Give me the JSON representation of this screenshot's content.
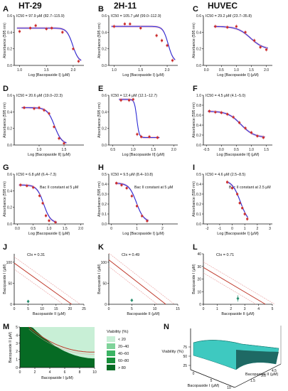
{
  "columns": [
    "HT-29",
    "2H-11",
    "HUVEC"
  ],
  "colors": {
    "curve": "#2b2bd6",
    "point": "#cc2f2f",
    "error": "#d98c8c",
    "band": "#f4b8c9",
    "isobole": "#c0392b",
    "isobole_ci": "#e89b9b",
    "combo_point": "#2a8f6f",
    "axis": "#111111",
    "green_scale": [
      "#c8efd6",
      "#7fd39a",
      "#3cb464",
      "#178f3a",
      "#066b24"
    ],
    "surface": "#3ec9c0"
  },
  "panel_letters": [
    "A",
    "B",
    "C",
    "D",
    "E",
    "F",
    "G",
    "H",
    "I",
    "J",
    "K",
    "L",
    "M",
    "N"
  ],
  "chart_data": [
    {
      "panel": "A",
      "type": "line",
      "column": "HT-29",
      "title": "IC50 = 97.9 μM (82.7–115.9)",
      "xlabel": "Log [Bacopaside I] (μM)",
      "ylabel": "Absorbance (595 nm)",
      "xlim": [
        0.9,
        2.2
      ],
      "ylim": [
        0,
        0.6
      ],
      "xticks": [
        "1.0",
        "1.5",
        "2.0"
      ],
      "yticks": [
        "0.0",
        "0.2",
        "0.4",
        "0.6"
      ],
      "top": 0.45,
      "bottom": 0.04,
      "logIC50": 1.99,
      "hill": -8,
      "points": [
        {
          "x": 1.0,
          "y": 0.41
        },
        {
          "x": 1.2,
          "y": 0.45
        },
        {
          "x": 1.3,
          "y": 0.48
        },
        {
          "x": 1.5,
          "y": 0.44
        },
        {
          "x": 1.6,
          "y": 0.45
        },
        {
          "x": 1.8,
          "y": 0.4
        },
        {
          "x": 2.0,
          "y": 0.2
        },
        {
          "x": 2.1,
          "y": 0.05
        }
      ]
    },
    {
      "panel": "B",
      "type": "line",
      "column": "2H-11",
      "title": "IC50 = 105.7 μM (99.0–112.9)",
      "xlabel": "Log [Bacopaside I] (μM)",
      "ylabel": "Absorbance (595 nm)",
      "xlim": [
        0.9,
        2.2
      ],
      "ylim": [
        0,
        0.6
      ],
      "xticks": [
        "1.0",
        "1.5",
        "2.0"
      ],
      "yticks": [
        "0.0",
        "0.2",
        "0.4",
        "0.6"
      ],
      "top": 0.47,
      "bottom": 0.04,
      "logIC50": 2.02,
      "hill": -9,
      "points": [
        {
          "x": 1.0,
          "y": 0.47
        },
        {
          "x": 1.2,
          "y": 0.5
        },
        {
          "x": 1.3,
          "y": 0.5
        },
        {
          "x": 1.5,
          "y": 0.45
        },
        {
          "x": 1.8,
          "y": 0.36
        },
        {
          "x": 1.9,
          "y": 0.3
        },
        {
          "x": 2.0,
          "y": 0.24
        },
        {
          "x": 2.1,
          "y": 0.06
        }
      ]
    },
    {
      "panel": "C",
      "type": "line",
      "column": "HUVEC",
      "title": "IC50 = 29.2 μM (23.7–35.8)",
      "xlabel": "Log [Bacopaside I] (μM)",
      "ylabel": "Absorbance (595 nm)",
      "xlim": [
        -0.1,
        2.2
      ],
      "ylim": [
        0,
        0.6
      ],
      "xticks": [
        "0.0",
        "0.5",
        "1.0",
        "1.5",
        "2.0"
      ],
      "yticks": [
        "0.0",
        "0.2",
        "0.4",
        "0.6"
      ],
      "top": 0.47,
      "bottom": 0.19,
      "logIC50": 1.47,
      "hill": -2,
      "points": [
        {
          "x": 0.3,
          "y": 0.47
        },
        {
          "x": 0.7,
          "y": 0.46
        },
        {
          "x": 1.0,
          "y": 0.47
        },
        {
          "x": 1.3,
          "y": 0.4
        },
        {
          "x": 1.6,
          "y": 0.3
        },
        {
          "x": 1.8,
          "y": 0.22
        },
        {
          "x": 2.0,
          "y": 0.19
        }
      ]
    },
    {
      "panel": "D",
      "type": "line",
      "column": "HT-29",
      "title": "IC50 = 20.6 μM (19.0–22.3)",
      "xlabel": "Log [Bacopaside II] (μM)",
      "ylabel": "Absorbance (595 nm)",
      "xlim": [
        0.5,
        1.9
      ],
      "ylim": [
        0,
        0.6
      ],
      "xticks": [
        "1.0",
        "1.5"
      ],
      "yticks": [
        "0.0",
        "0.2",
        "0.4",
        "0.6"
      ],
      "top": 0.45,
      "bottom": 0.01,
      "logIC50": 1.31,
      "hill": -6,
      "points": [
        {
          "x": 0.7,
          "y": 0.45
        },
        {
          "x": 0.9,
          "y": 0.44
        },
        {
          "x": 1.0,
          "y": 0.45
        },
        {
          "x": 1.1,
          "y": 0.42
        },
        {
          "x": 1.2,
          "y": 0.38
        },
        {
          "x": 1.3,
          "y": 0.22
        },
        {
          "x": 1.4,
          "y": 0.08
        },
        {
          "x": 1.5,
          "y": 0.02
        }
      ]
    },
    {
      "panel": "E",
      "type": "line",
      "column": "2H-11",
      "title": "IC50 = 12.4 μM (12.1–12.7)",
      "xlabel": "Log [Bacopaside II] (μM)",
      "ylabel": "Absorbance (595 nm)",
      "xlim": [
        0.4,
        2.1
      ],
      "ylim": [
        0,
        0.6
      ],
      "xticks": [
        "0.5",
        "1.0",
        "1.5",
        "2.0"
      ],
      "yticks": [
        "0.0",
        "0.2",
        "0.4",
        "0.6"
      ],
      "top": 0.55,
      "bottom": 0.09,
      "logIC50": 1.09,
      "hill": -15,
      "points": [
        {
          "x": 0.7,
          "y": 0.54
        },
        {
          "x": 0.9,
          "y": 0.54
        },
        {
          "x": 1.0,
          "y": 0.55
        },
        {
          "x": 1.1,
          "y": 0.13
        },
        {
          "x": 1.2,
          "y": 0.1
        },
        {
          "x": 1.4,
          "y": 0.1
        },
        {
          "x": 1.6,
          "y": 0.09
        }
      ]
    },
    {
      "panel": "F",
      "type": "line",
      "column": "HUVEC",
      "title": "IC50 = 4.5 μM (4.1–5.0)",
      "xlabel": "Log [Bacopaside II] (μM)",
      "ylabel": "Absorbance (595 nm)",
      "xlim": [
        -0.6,
        1.7
      ],
      "ylim": [
        0,
        1.0
      ],
      "xticks": [
        "-0.5",
        "0.0",
        "0.5",
        "1.0",
        "1.5"
      ],
      "yticks": [
        "0.0",
        "0.2",
        "0.4",
        "0.6",
        "0.8",
        "1.0"
      ],
      "top": 0.68,
      "bottom": 0.15,
      "logIC50": 0.65,
      "hill": -2,
      "points": [
        {
          "x": -0.4,
          "y": 0.68
        },
        {
          "x": -0.2,
          "y": 0.66
        },
        {
          "x": 0.0,
          "y": 0.65
        },
        {
          "x": 0.2,
          "y": 0.62
        },
        {
          "x": 0.4,
          "y": 0.56
        },
        {
          "x": 0.6,
          "y": 0.45
        },
        {
          "x": 0.8,
          "y": 0.34
        },
        {
          "x": 1.0,
          "y": 0.25
        },
        {
          "x": 1.2,
          "y": 0.18
        },
        {
          "x": 1.4,
          "y": 0.15
        }
      ]
    },
    {
      "panel": "G",
      "type": "line",
      "column": "HT-29",
      "title": "IC50 = 6.8 μM (6.4–7.3)",
      "annotation": "Bac II constant at 5 μM",
      "xlabel": "Log [Bacopaside I] (μM)",
      "ylabel": "Absorbance (595 nm)",
      "xlim": [
        -0.1,
        2.1
      ],
      "ylim": [
        0,
        0.6
      ],
      "xticks": [
        "0.0",
        "0.5",
        "1.0",
        "1.5",
        "2.0"
      ],
      "yticks": [
        "0.0",
        "0.2",
        "0.4",
        "0.6"
      ],
      "top": 0.47,
      "bottom": 0.01,
      "logIC50": 0.83,
      "hill": -4,
      "points": [
        {
          "x": 0.1,
          "y": 0.47
        },
        {
          "x": 0.3,
          "y": 0.46
        },
        {
          "x": 0.5,
          "y": 0.44
        },
        {
          "x": 0.7,
          "y": 0.34
        },
        {
          "x": 0.8,
          "y": 0.25
        },
        {
          "x": 0.9,
          "y": 0.1
        },
        {
          "x": 1.0,
          "y": 0.04
        },
        {
          "x": 1.2,
          "y": 0.02
        }
      ]
    },
    {
      "panel": "H",
      "type": "line",
      "column": "2H-11",
      "title": "IC50 = 9.5 μM (8.4–10.8)",
      "annotation": "Bac II constant at 5 μM",
      "xlabel": "Log [Bacopaside I] (μM)",
      "ylabel": "Absorbance (595 nm)",
      "xlim": [
        -0.1,
        2.6
      ],
      "ylim": [
        0,
        0.5
      ],
      "xticks": [
        "0",
        "1",
        "2"
      ],
      "yticks": [
        "0.0",
        "0.1",
        "0.2",
        "0.3",
        "0.4",
        "0.5"
      ],
      "top": 0.41,
      "bottom": 0.02,
      "logIC50": 0.98,
      "hill": -3,
      "points": [
        {
          "x": 0.2,
          "y": 0.41
        },
        {
          "x": 0.4,
          "y": 0.39
        },
        {
          "x": 0.6,
          "y": 0.36
        },
        {
          "x": 0.8,
          "y": 0.28
        },
        {
          "x": 1.0,
          "y": 0.18
        },
        {
          "x": 1.2,
          "y": 0.08
        },
        {
          "x": 1.4,
          "y": 0.03
        }
      ]
    },
    {
      "panel": "I",
      "type": "line",
      "column": "HUVEC",
      "title": "IC50 = 4.6 μM (2.5–8.5)",
      "annotation": "Bac II constant at 2.5 μM",
      "xlabel": "Log [Bacopaside I] (μM)",
      "ylabel": "Absorbance (595 nm)",
      "xlim": [
        -2.3,
        3.2
      ],
      "ylim": [
        0,
        0.5
      ],
      "xticks": [
        "-2",
        "-1",
        "0",
        "1",
        "2",
        "3"
      ],
      "yticks": [
        "0.0",
        "0.1",
        "0.2",
        "0.3",
        "0.4",
        "0.5"
      ],
      "top": 0.44,
      "bottom": 0.0,
      "logIC50": 0.66,
      "hill": -1.3,
      "points": [
        {
          "x": -0.4,
          "y": 0.42
        },
        {
          "x": 0.0,
          "y": 0.36
        },
        {
          "x": 0.4,
          "y": 0.3
        },
        {
          "x": 0.6,
          "y": 0.21
        },
        {
          "x": 0.8,
          "y": 0.16
        },
        {
          "x": 1.0,
          "y": 0.1
        },
        {
          "x": 1.2,
          "y": 0.05
        }
      ]
    },
    {
      "panel": "J",
      "type": "line",
      "column": "HT-29",
      "title": "CIx = 0.31",
      "xlabel": "Bacopaside II (μM)",
      "ylabel": "Bacopaside I (μM)",
      "xlim": [
        0,
        25
      ],
      "ylim": [
        0,
        120
      ],
      "xticks": [
        "0",
        "5",
        "10",
        "15",
        "20",
        "25"
      ],
      "yticks": [
        "0",
        "50",
        "100"
      ],
      "isobole": {
        "x_int": 20.6,
        "y_int": 97.9
      },
      "combo_point": {
        "x": 5,
        "y": 6.8,
        "err": 2
      }
    },
    {
      "panel": "K",
      "type": "line",
      "column": "2H-11",
      "title": "CIx = 0.49",
      "xlabel": "Bacopaside II (μM)",
      "ylabel": "Bacopaside I (μM)",
      "xlim": [
        0,
        15
      ],
      "ylim": [
        0,
        120
      ],
      "xticks": [
        "0",
        "5",
        "10",
        "15"
      ],
      "yticks": [
        "0",
        "50",
        "100"
      ],
      "isobole": {
        "x_int": 12.4,
        "y_int": 105.7
      },
      "combo_point": {
        "x": 5,
        "y": 9.5,
        "err": 3
      }
    },
    {
      "panel": "L",
      "type": "line",
      "column": "HUVEC",
      "title": "CIx = 0.71",
      "xlabel": "Bacopaside II (μM)",
      "ylabel": "Bacopaside I (μM)",
      "xlim": [
        0,
        5
      ],
      "ylim": [
        0,
        40
      ],
      "xticks": [
        "0",
        "1",
        "2",
        "3",
        "4",
        "5"
      ],
      "yticks": [
        "0",
        "10",
        "20",
        "30",
        "40"
      ],
      "isobole": {
        "x_int": 4.5,
        "y_int": 29.2
      },
      "combo_point": {
        "x": 2.5,
        "y": 4.6,
        "err": 2.5
      }
    },
    {
      "panel": "M",
      "type": "heatmap",
      "xlabel": "Bacopaside I (μM)",
      "ylabel": "Bacopaside II (μM)",
      "xlim": [
        0,
        10
      ],
      "ylim": [
        0,
        5
      ],
      "xticks": [
        "0",
        "2",
        "4",
        "6",
        "8",
        "10"
      ],
      "yticks": [
        "0",
        "1",
        "2",
        "3",
        "4",
        "5"
      ],
      "legend_title": "Viability (%)",
      "legend": [
        "< 20",
        "20–40",
        "40–60",
        "60–80",
        "> 80"
      ]
    },
    {
      "panel": "N",
      "type": "area",
      "zlabel": "Viability (%)",
      "xlabel": "Bacopaside I (μM)",
      "ylabel": "Bacopaside II (μM)",
      "zticks": [
        "25",
        "50",
        "75"
      ],
      "xticks": [
        "0",
        "5",
        "10"
      ],
      "yticks": [
        "1.5",
        "3.0",
        "4.5"
      ]
    }
  ]
}
